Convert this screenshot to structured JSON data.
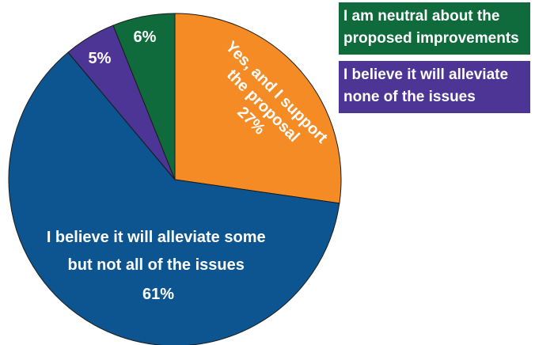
{
  "chart_data": {
    "type": "pie",
    "slices": [
      {
        "label": "Yes, and I support the proposal",
        "value": 27,
        "value_label": "27%",
        "color": "#f58b24"
      },
      {
        "label": "I believe it will alleviate some but not all of the issues",
        "value": 61,
        "value_label": "61%",
        "color": "#0d5590"
      },
      {
        "label": "I believe it will alleviate none of the issues",
        "value": 5,
        "value_label": "5%",
        "color": "#4c3594"
      },
      {
        "label": "I am neutral about the proposed improvements",
        "value": 6,
        "value_label": "6%",
        "color": "#0f6b3b"
      }
    ],
    "start_angle_deg": 0,
    "direction": "clockwise-from-top",
    "in_slice_labels": {
      "orange": [
        "Yes, and I support",
        "the proposal",
        "27%"
      ],
      "blue": [
        "I believe it will alleviate some",
        "but not all of the issues",
        "61%"
      ],
      "purple": "5%",
      "green": "6%"
    },
    "legend": [
      {
        "lines": [
          "I am neutral about the",
          "proposed improvements"
        ],
        "color": "#0f6b3b"
      },
      {
        "lines": [
          "I believe it will alleviate",
          "none of the issues"
        ],
        "color": "#4c3594"
      }
    ],
    "legend_position": "top-right"
  }
}
